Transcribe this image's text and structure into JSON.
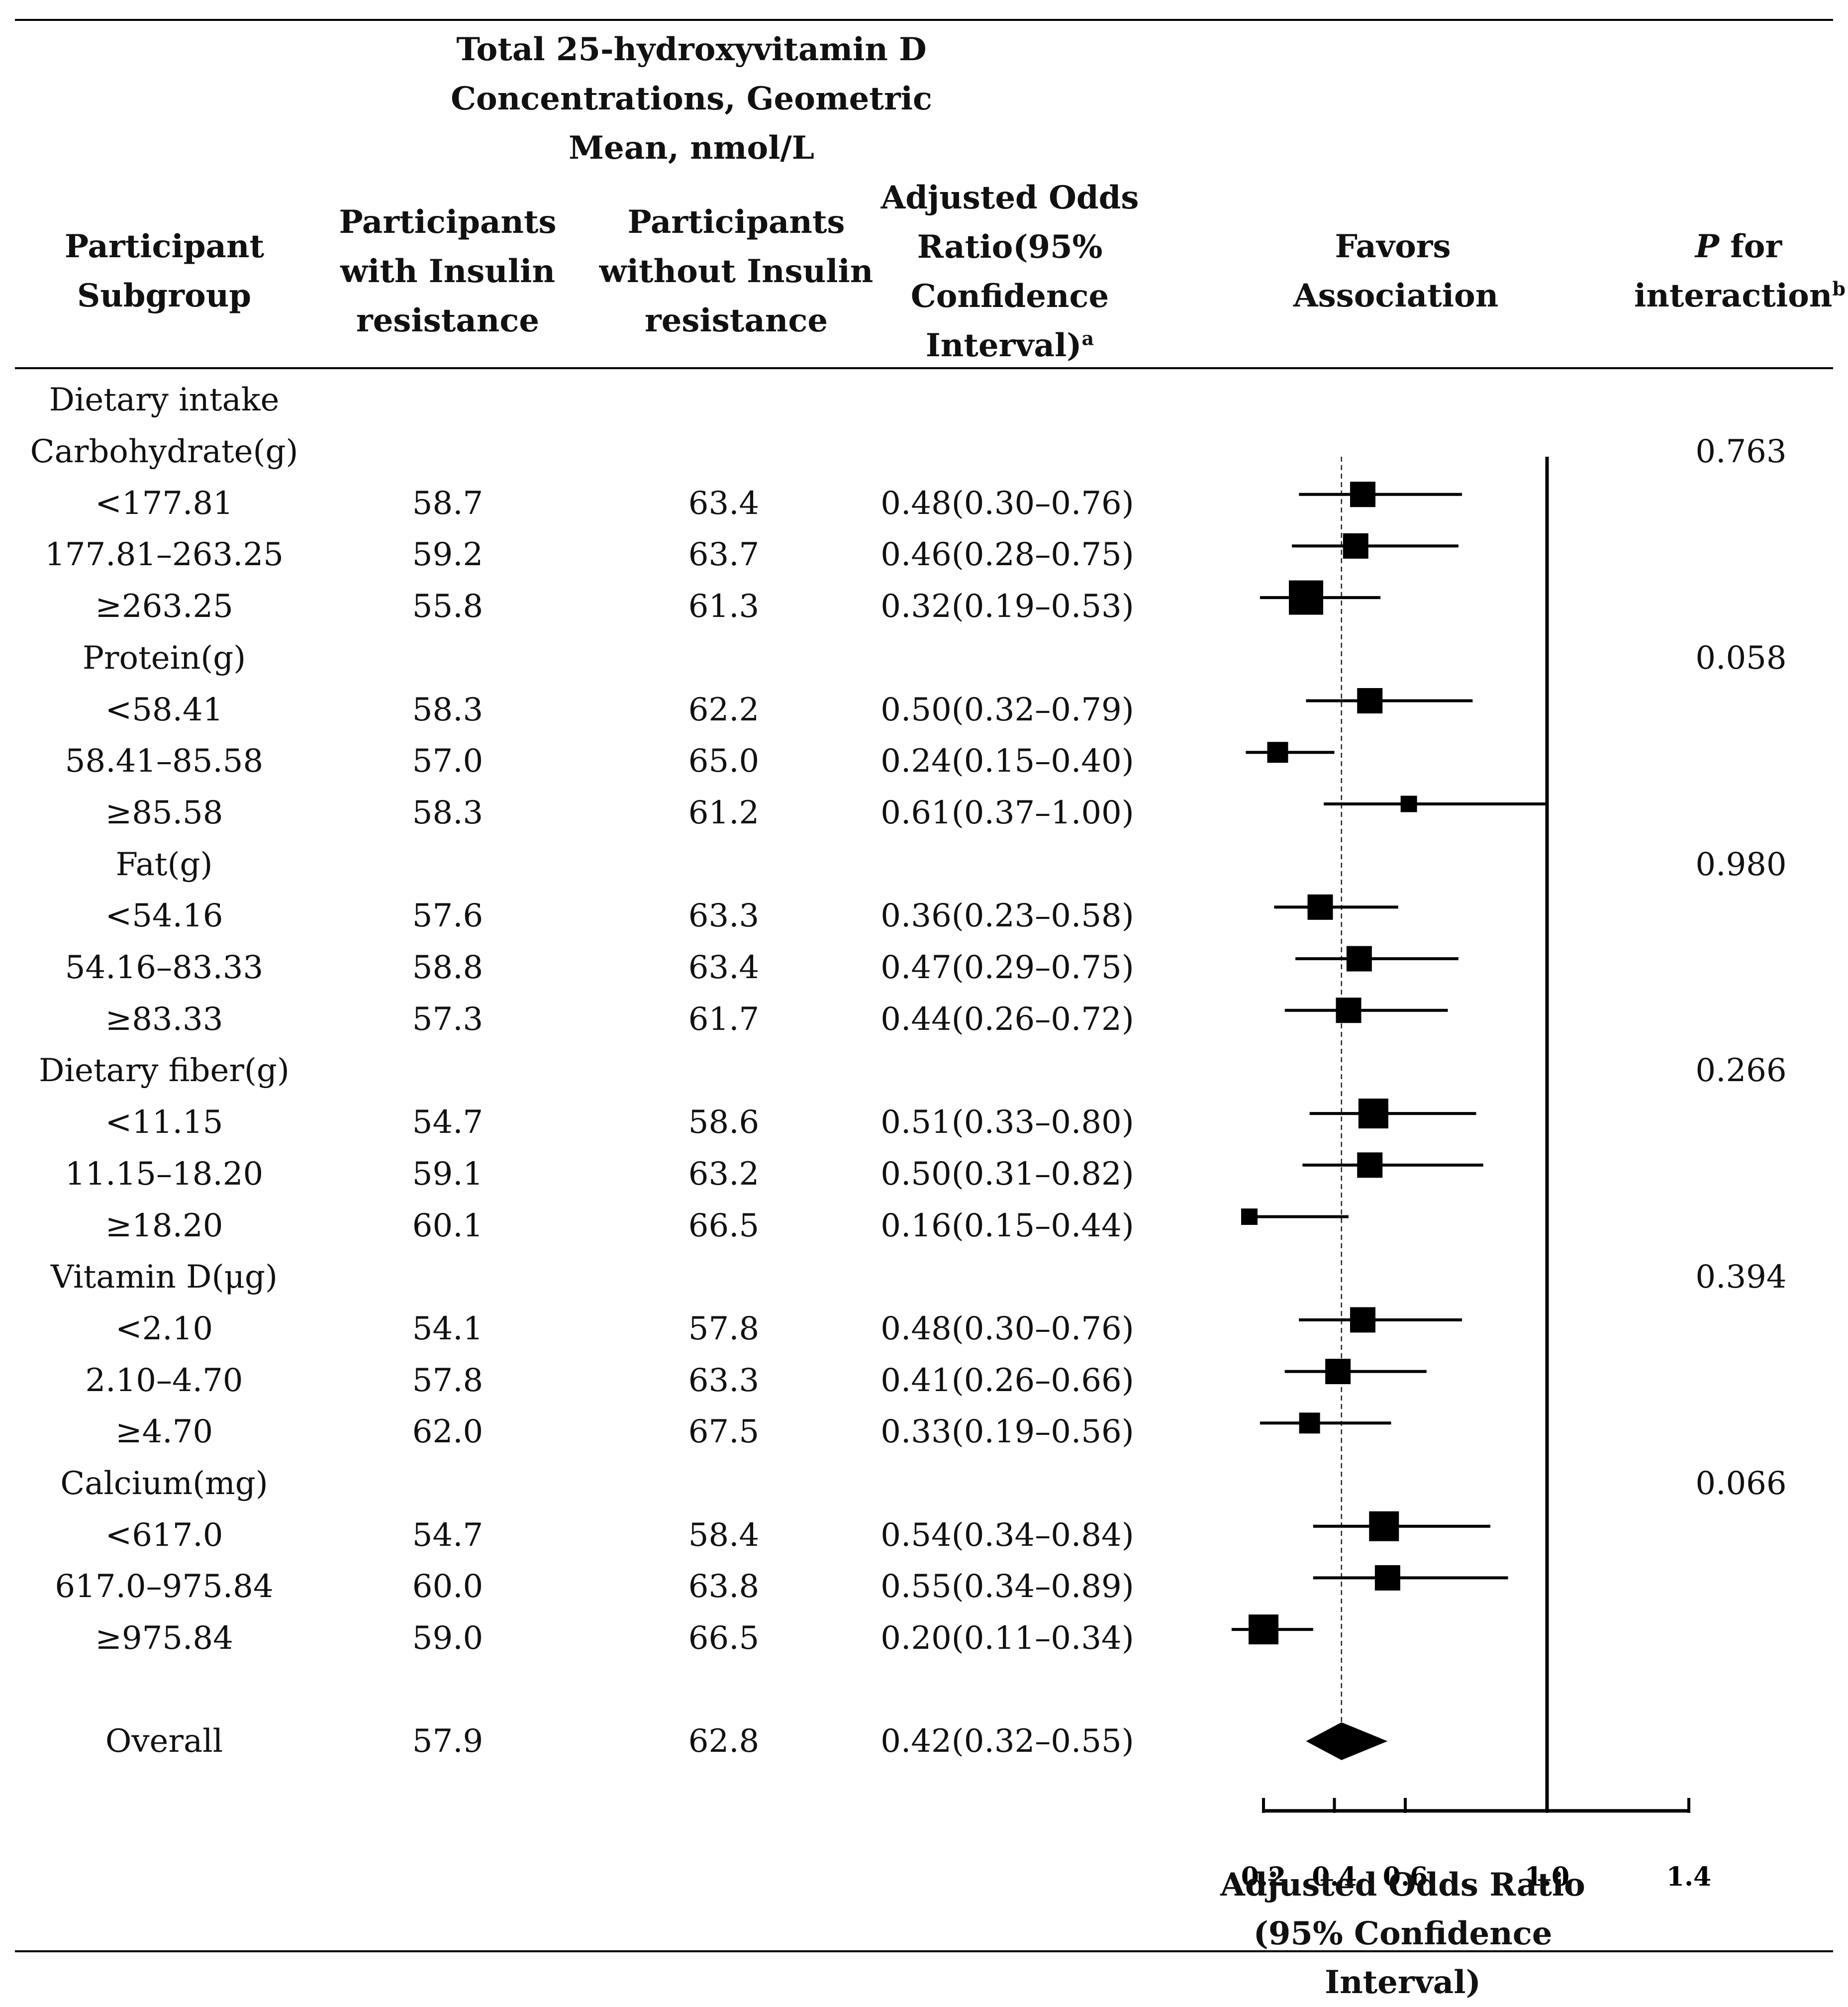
{
  "headers": {
    "subgroup": "Participant Subgroup",
    "group_title": "Total 25-hydroxyvitamin D Concentrations, Geometric Mean, nmol/L",
    "with_ir": "Participants with Insulin resistance",
    "without_ir": "Participants without Insulin resistance",
    "or_ci": "Adjusted Odds Ratio(95% Confidence Interval)",
    "or_ci_note": "a",
    "favors": "Favors Association",
    "p_prefix": "P",
    "p_suffix": " for interaction",
    "p_note": "b"
  },
  "section_label": "Dietary intake",
  "rows": [
    {
      "kind": "group",
      "label": "Carbohydrate(g)",
      "p": "0.763"
    },
    {
      "kind": "item",
      "label": "<177.81",
      "with": "58.7",
      "without": "63.4",
      "or_text": "0.48(0.30–0.76)"
    },
    {
      "kind": "item",
      "label": "177.81–263.25",
      "with": "59.2",
      "without": "63.7",
      "or_text": "0.46(0.28–0.75)"
    },
    {
      "kind": "item",
      "label": "≥263.25",
      "with": "55.8",
      "without": "61.3",
      "or_text": "0.32(0.19–0.53)"
    },
    {
      "kind": "group",
      "label": "Protein(g)",
      "p": "0.058"
    },
    {
      "kind": "item",
      "label": "<58.41",
      "with": "58.3",
      "without": "62.2",
      "or_text": "0.50(0.32–0.79)"
    },
    {
      "kind": "item",
      "label": "58.41–85.58",
      "with": "57.0",
      "without": "65.0",
      "or_text": "0.24(0.15–0.40)"
    },
    {
      "kind": "item",
      "label": "≥85.58",
      "with": "58.3",
      "without": "61.2",
      "or_text": "0.61(0.37–1.00)"
    },
    {
      "kind": "group",
      "label": "Fat(g)",
      "p": "0.980"
    },
    {
      "kind": "item",
      "label": "<54.16",
      "with": "57.6",
      "without": "63.3",
      "or_text": "0.36(0.23–0.58)"
    },
    {
      "kind": "item",
      "label": "54.16–83.33",
      "with": "58.8",
      "without": "63.4",
      "or_text": "0.47(0.29–0.75)"
    },
    {
      "kind": "item",
      "label": "≥83.33",
      "with": "57.3",
      "without": "61.7",
      "or_text": "0.44(0.26–0.72)"
    },
    {
      "kind": "group",
      "label": "Dietary fiber(g)",
      "p": "0.266"
    },
    {
      "kind": "item",
      "label": "<11.15",
      "with": "54.7",
      "without": "58.6",
      "or_text": "0.51(0.33–0.80)"
    },
    {
      "kind": "item",
      "label": "11.15–18.20",
      "with": "59.1",
      "without": "63.2",
      "or_text": "0.50(0.31–0.82)"
    },
    {
      "kind": "item",
      "label": "≥18.20",
      "with": "60.1",
      "without": "66.5",
      "or_text": "0.16(0.15–0.44)"
    },
    {
      "kind": "group",
      "label": "Vitamin D(μg)",
      "p": "0.394"
    },
    {
      "kind": "item",
      "label": "<2.10",
      "with": "54.1",
      "without": "57.8",
      "or_text": "0.48(0.30–0.76)"
    },
    {
      "kind": "item",
      "label": "2.10–4.70",
      "with": "57.8",
      "without": "63.3",
      "or_text": "0.41(0.26–0.66)"
    },
    {
      "kind": "item",
      "label": "≥4.70",
      "with": "62.0",
      "without": "67.5",
      "or_text": "0.33(0.19–0.56)"
    },
    {
      "kind": "group",
      "label": "Calcium(mg)",
      "p": "0.066"
    },
    {
      "kind": "item",
      "label": "<617.0",
      "with": "54.7",
      "without": "58.4",
      "or_text": "0.54(0.34–0.84)"
    },
    {
      "kind": "item",
      "label": "617.0–975.84",
      "with": "60.0",
      "without": "63.8",
      "or_text": "0.55(0.34–0.89)"
    },
    {
      "kind": "item",
      "label": "≥975.84",
      "with": "59.0",
      "without": "66.5",
      "or_text": "0.20(0.11–0.34)"
    },
    {
      "kind": "overall",
      "label": "Overall",
      "with": "57.9",
      "without": "62.8",
      "or_text": "0.42(0.32–0.55)"
    }
  ],
  "chart_data": {
    "type": "forest",
    "xlabel": "Adjusted Odds Ratio (95% Confidence Interval)",
    "x_ticks": [
      0.2,
      0.4,
      0.6,
      1.0,
      1.4
    ],
    "x_tick_labels": [
      "0.2",
      "0.4",
      "0.6",
      "1.0",
      "1.4"
    ],
    "xlim": [
      0.2,
      1.4
    ],
    "reference_line": 1.0,
    "overall_line": 0.42,
    "estimates": [
      {
        "label": "Carbohydrate <177.81",
        "or": 0.48,
        "lo": 0.3,
        "hi": 0.76,
        "weight": 3
      },
      {
        "label": "Carbohydrate 177.81–263.25",
        "or": 0.46,
        "lo": 0.28,
        "hi": 0.75,
        "weight": 3
      },
      {
        "label": "Carbohydrate ≥263.25",
        "or": 0.32,
        "lo": 0.19,
        "hi": 0.53,
        "weight": 5
      },
      {
        "label": "Protein <58.41",
        "or": 0.5,
        "lo": 0.32,
        "hi": 0.79,
        "weight": 3
      },
      {
        "label": "Protein 58.41–85.58",
        "or": 0.24,
        "lo": 0.15,
        "hi": 0.4,
        "weight": 2
      },
      {
        "label": "Protein ≥85.58",
        "or": 0.61,
        "lo": 0.37,
        "hi": 1.0,
        "weight": 1
      },
      {
        "label": "Fat <54.16",
        "or": 0.36,
        "lo": 0.23,
        "hi": 0.58,
        "weight": 3
      },
      {
        "label": "Fat 54.16–83.33",
        "or": 0.47,
        "lo": 0.29,
        "hi": 0.75,
        "weight": 3
      },
      {
        "label": "Fat ≥83.33",
        "or": 0.44,
        "lo": 0.26,
        "hi": 0.72,
        "weight": 3
      },
      {
        "label": "Dietary fiber <11.15",
        "or": 0.51,
        "lo": 0.33,
        "hi": 0.8,
        "weight": 4
      },
      {
        "label": "Dietary fiber 11.15–18.20",
        "or": 0.5,
        "lo": 0.31,
        "hi": 0.82,
        "weight": 3
      },
      {
        "label": "Dietary fiber ≥18.20",
        "or": 0.16,
        "lo": 0.15,
        "hi": 0.44,
        "weight": 1
      },
      {
        "label": "Vitamin D <2.10",
        "or": 0.48,
        "lo": 0.3,
        "hi": 0.76,
        "weight": 3
      },
      {
        "label": "Vitamin D 2.10–4.70",
        "or": 0.41,
        "lo": 0.26,
        "hi": 0.66,
        "weight": 3
      },
      {
        "label": "Vitamin D ≥4.70",
        "or": 0.33,
        "lo": 0.19,
        "hi": 0.56,
        "weight": 2
      },
      {
        "label": "Calcium <617.0",
        "or": 0.54,
        "lo": 0.34,
        "hi": 0.84,
        "weight": 4
      },
      {
        "label": "Calcium 617.0–975.84",
        "or": 0.55,
        "lo": 0.34,
        "hi": 0.89,
        "weight": 3
      },
      {
        "label": "Calcium ≥975.84",
        "or": 0.2,
        "lo": 0.11,
        "hi": 0.34,
        "weight": 4
      }
    ],
    "overall": {
      "label": "Overall",
      "or": 0.42,
      "lo": 0.32,
      "hi": 0.55
    }
  }
}
